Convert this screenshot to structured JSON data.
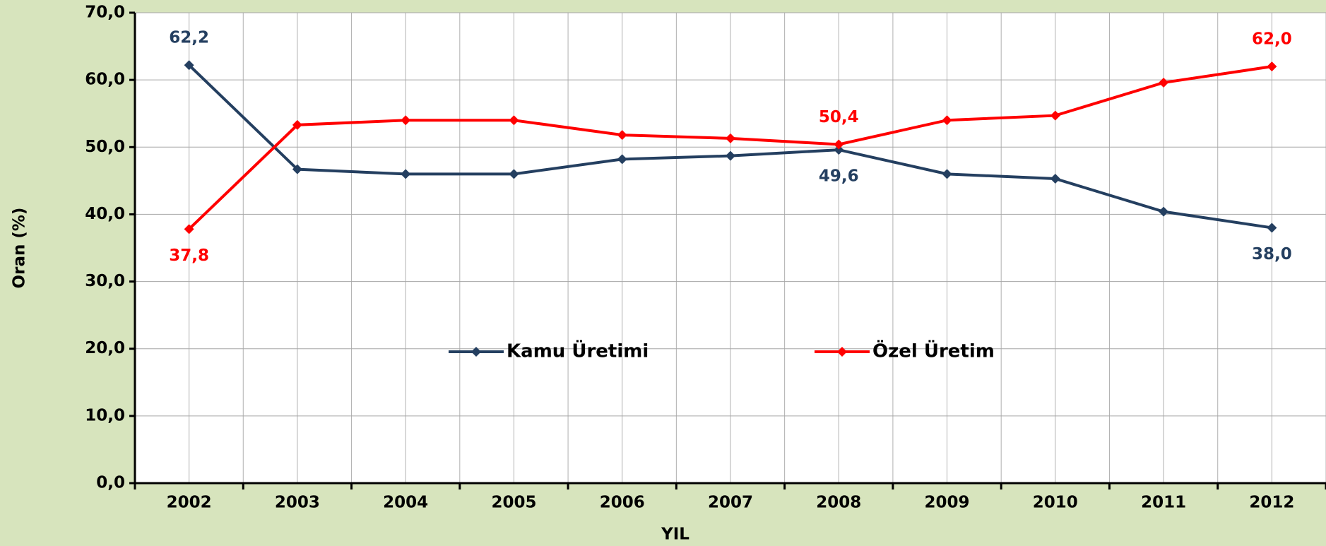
{
  "chart_data": {
    "type": "line",
    "x_label": "YIL",
    "y_label": "Oran (%)",
    "categories": [
      "2002",
      "2003",
      "2004",
      "2005",
      "2006",
      "2007",
      "2008",
      "2009",
      "2010",
      "2011",
      "2012"
    ],
    "series": [
      {
        "name": "Kamu Üretimi",
        "color": "#243f60",
        "values": [
          62.2,
          46.7,
          46.0,
          46.0,
          48.2,
          48.7,
          49.6,
          46.0,
          45.3,
          40.4,
          38.0
        ],
        "value_labels": [
          "62,2",
          null,
          null,
          null,
          null,
          null,
          "49,6",
          null,
          null,
          null,
          "38,0"
        ]
      },
      {
        "name": "Özel Üretim",
        "color": "#ff0000",
        "values": [
          37.8,
          53.3,
          54.0,
          54.0,
          51.8,
          51.3,
          50.4,
          54.0,
          54.7,
          59.6,
          62.0
        ],
        "value_labels": [
          "37,8",
          null,
          null,
          null,
          null,
          null,
          "50,4",
          null,
          null,
          null,
          "62,0"
        ]
      }
    ],
    "ylim": [
      0,
      70
    ],
    "yticks": [
      {
        "value": 0,
        "label": "0,0"
      },
      {
        "value": 10,
        "label": "10,0"
      },
      {
        "value": 20,
        "label": "20,0"
      },
      {
        "value": 30,
        "label": "30,0"
      },
      {
        "value": 40,
        "label": "40,0"
      },
      {
        "value": 50,
        "label": "50,0"
      },
      {
        "value": 60,
        "label": "60,0"
      },
      {
        "value": 70,
        "label": "70,0"
      }
    ],
    "grid": true
  }
}
